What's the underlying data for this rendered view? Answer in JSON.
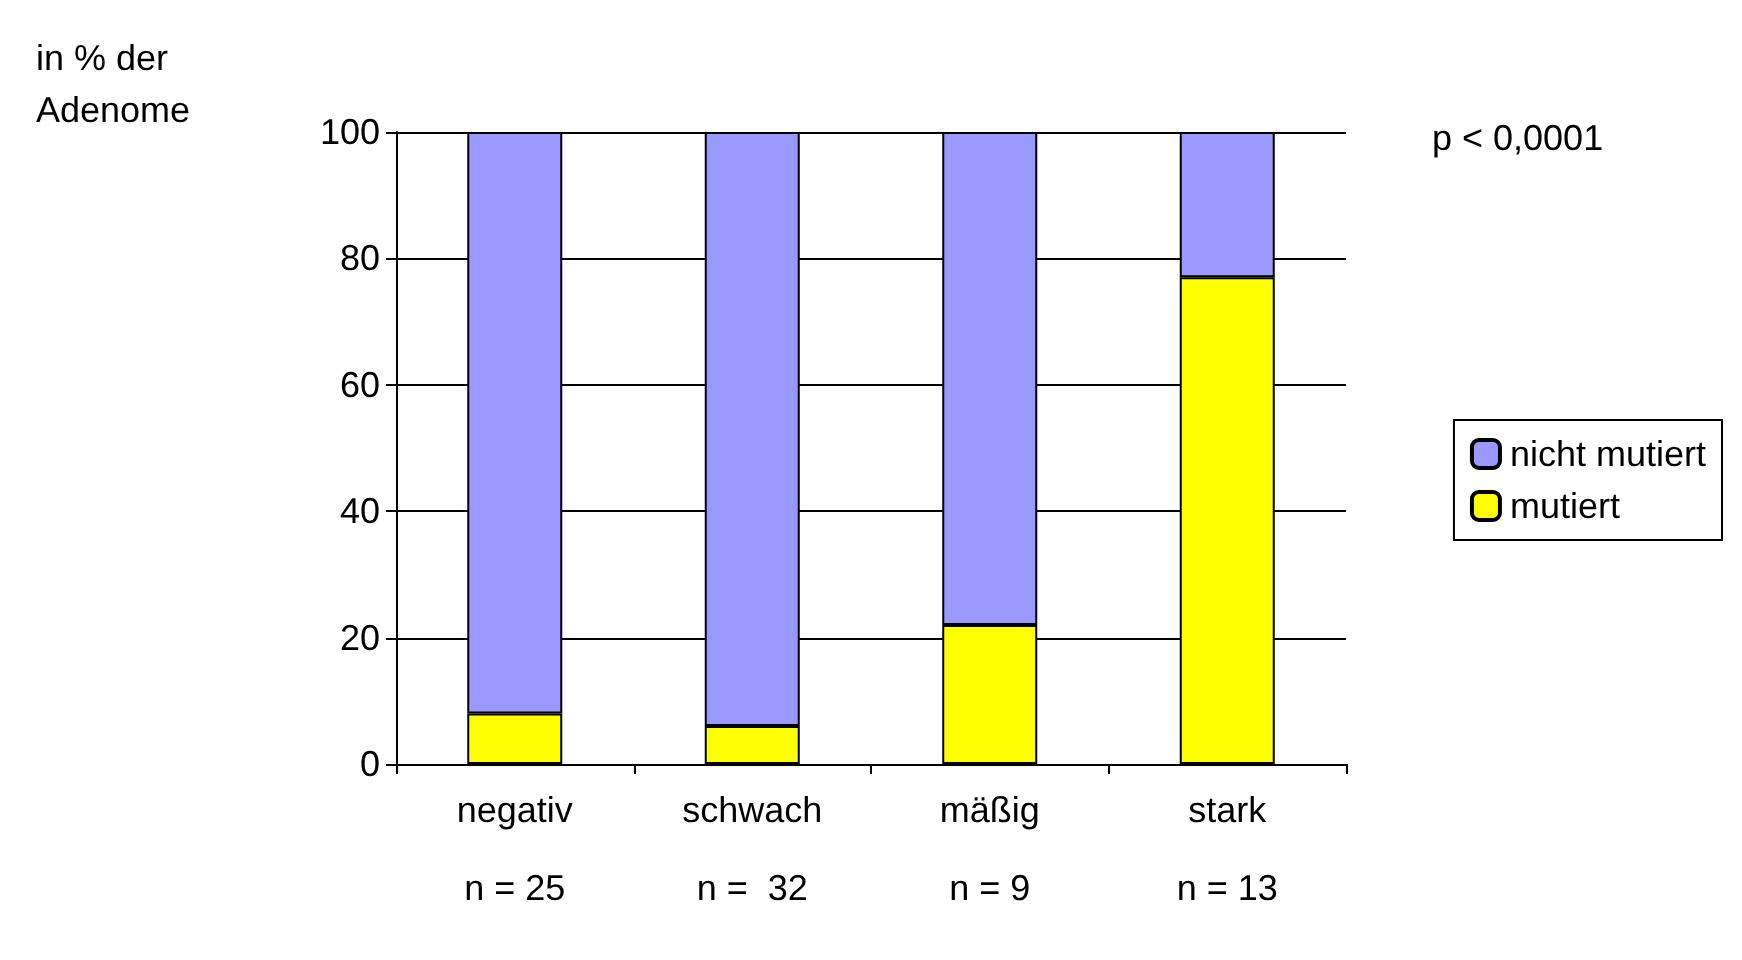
{
  "chart_data": {
    "type": "bar",
    "ylabel": "in % der Adenome",
    "categories": [
      "negativ",
      "schwach",
      "mäßig",
      "stark"
    ],
    "stacked": true,
    "series": [
      {
        "name": "mutiert",
        "color": "#ffff00",
        "values": [
          8,
          6,
          22,
          77
        ]
      },
      {
        "name": "nicht mutiert",
        "color": "#9999ff",
        "values": [
          92,
          94,
          78,
          23
        ]
      }
    ],
    "ylim": [
      0,
      100
    ],
    "yticks": [
      0,
      20,
      40,
      60,
      80,
      100
    ],
    "grid": "y",
    "legend": "right",
    "annotations": [
      "p < 0,0001",
      "n = 25",
      "n =  32",
      "n = 9",
      "n = 13"
    ]
  }
}
